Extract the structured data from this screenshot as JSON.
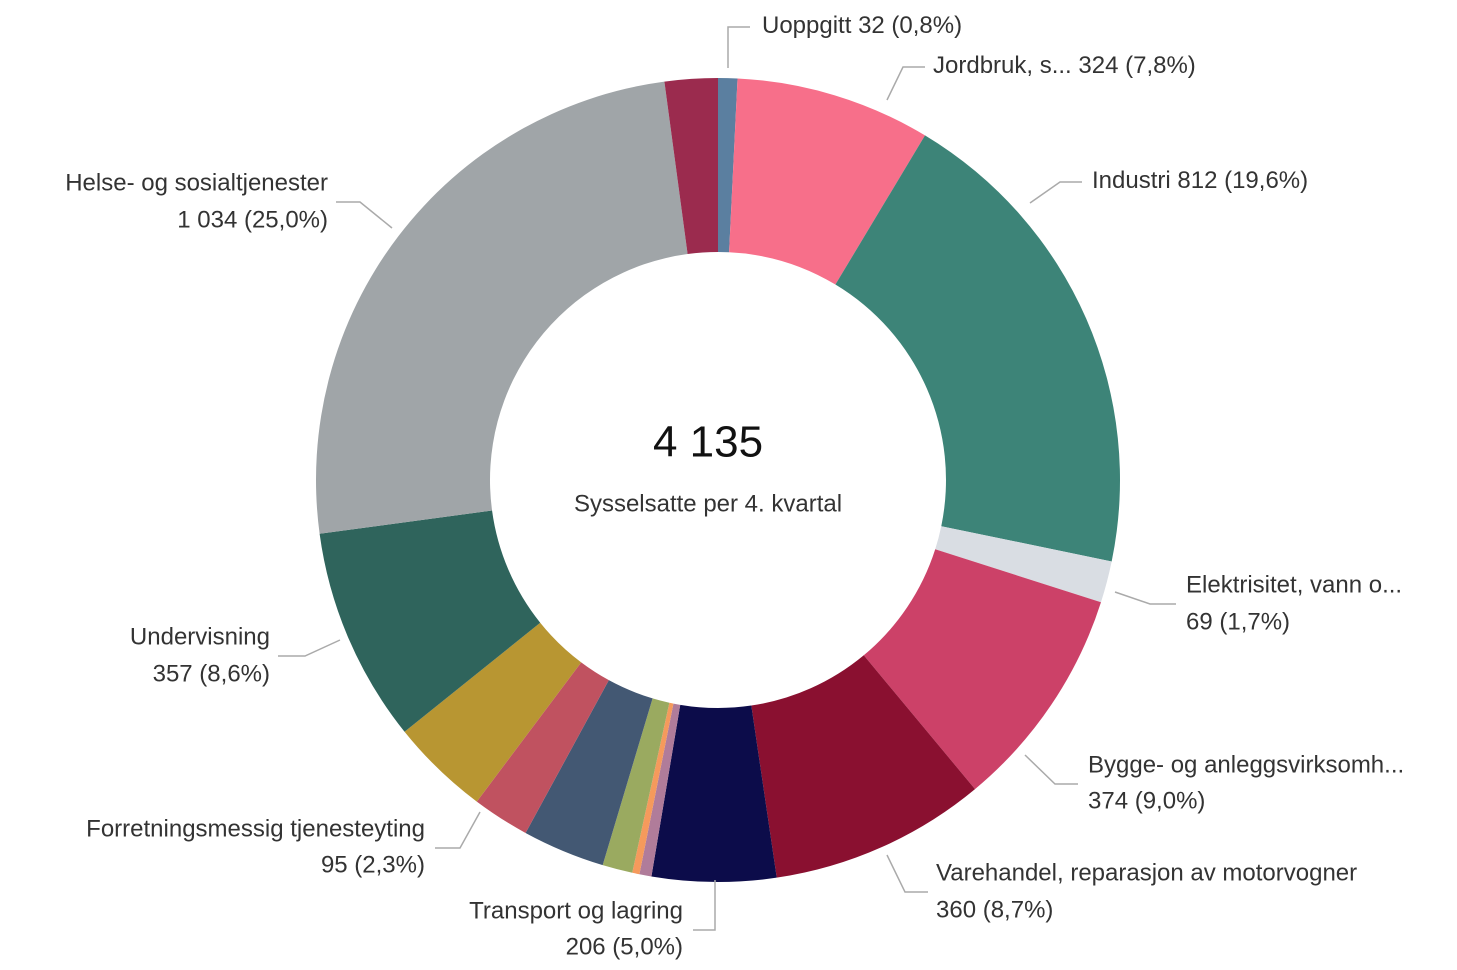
{
  "chart_data": {
    "type": "donut",
    "center_value": "4 135",
    "center_subtitle": "Sysselsatte per 4. kvartal",
    "categories": [
      "Uoppgitt",
      "Jordbruk, s...",
      "Industri",
      "Elektrisitet, vann o...",
      "Bygge- og anleggsvirksomh...",
      "Varehandel, reparasjon av motorvogner",
      "Transport og lagring",
      null,
      null,
      null,
      null,
      "Forretningsmessig tjenesteyting",
      null,
      "Undervisning",
      "Helse- og sosialtjenester",
      null
    ],
    "values": [
      32,
      324,
      812,
      69,
      374,
      360,
      206,
      20,
      12,
      50,
      137,
      95,
      165,
      357,
      1034,
      88
    ],
    "value_labels": [
      "32 (0,8%)",
      "324 (7,8%)",
      "812 (19,6%)",
      "69 (1,7%)",
      "374 (9,0%)",
      "360 (8,7%)",
      "206 (5,0%)",
      null,
      null,
      null,
      null,
      "95 (2,3%)",
      null,
      "357 (8,6%)",
      "1 034 (25,0%)",
      null
    ],
    "colors": [
      "#5b7fa0",
      "#f76f8a",
      "#3d8478",
      "#d9dde3",
      "#cc4168",
      "#8a1030",
      "#0c0c4a",
      "#b07c9a",
      "#f59a5c",
      "#9aaa60",
      "#435873",
      "#c05260",
      "#b89632",
      "#2f645c",
      "#a0a5a8",
      "#9b2b4e"
    ]
  }
}
